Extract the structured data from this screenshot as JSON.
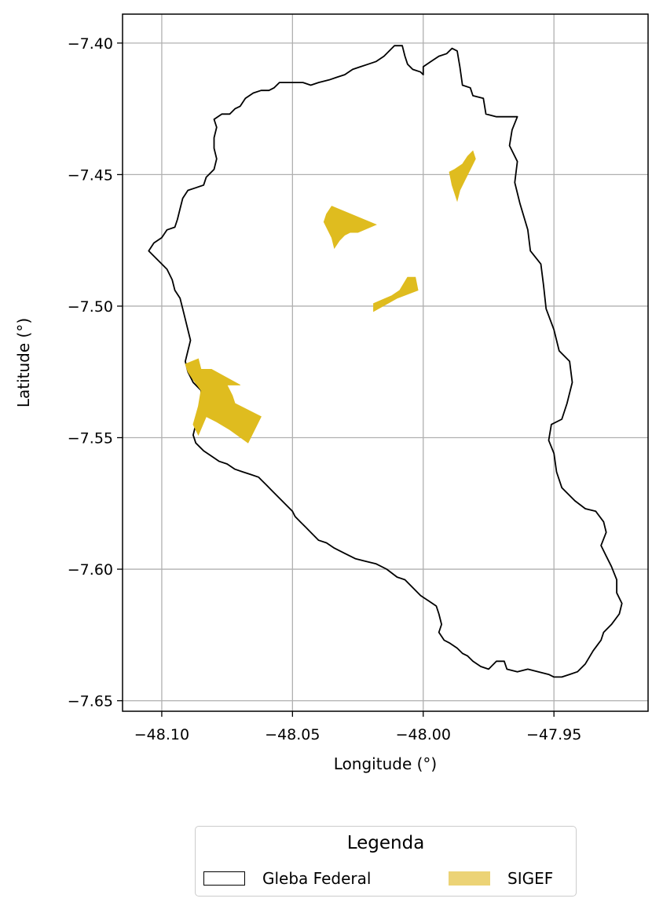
{
  "chart_data": {
    "type": "map",
    "xlabel": "Longitude (°)",
    "ylabel": "Latitude (°)",
    "xlim": [
      -48.115,
      -47.914
    ],
    "ylim": [
      -7.654,
      -7.389
    ],
    "x_ticks": [
      -48.1,
      -48.05,
      -48.0,
      -47.95
    ],
    "x_tick_labels": [
      "−48.10",
      "−48.05",
      "−48.00",
      "−47.95"
    ],
    "y_ticks": [
      -7.4,
      -7.45,
      -7.5,
      -7.55,
      -7.6,
      -7.65
    ],
    "y_tick_labels": [
      "−7.40",
      "−7.45",
      "−7.50",
      "−7.55",
      "−7.60",
      "−7.65"
    ],
    "grid": true,
    "layers": [
      {
        "name": "Gleba Federal",
        "style": "outline",
        "stroke": "#000000",
        "polygons": [
          [
            [
              -48.011,
              -7.401
            ],
            [
              -48.008,
              -7.401
            ],
            [
              -48.007,
              -7.405
            ],
            [
              -48.006,
              -7.408
            ],
            [
              -48.004,
              -7.41
            ],
            [
              -48.001,
              -7.411
            ],
            [
              -48.0,
              -7.412
            ],
            [
              -48.0,
              -7.409
            ],
            [
              -47.997,
              -7.407
            ],
            [
              -47.994,
              -7.405
            ],
            [
              -47.991,
              -7.404
            ],
            [
              -47.989,
              -7.402
            ],
            [
              -47.987,
              -7.403
            ],
            [
              -47.986,
              -7.409
            ],
            [
              -47.985,
              -7.416
            ],
            [
              -47.982,
              -7.417
            ],
            [
              -47.981,
              -7.42
            ],
            [
              -47.977,
              -7.421
            ],
            [
              -47.976,
              -7.427
            ],
            [
              -47.972,
              -7.428
            ],
            [
              -47.964,
              -7.428
            ],
            [
              -47.966,
              -7.433
            ],
            [
              -47.967,
              -7.439
            ],
            [
              -47.964,
              -7.445
            ],
            [
              -47.965,
              -7.453
            ],
            [
              -47.963,
              -7.461
            ],
            [
              -47.96,
              -7.471
            ],
            [
              -47.959,
              -7.479
            ],
            [
              -47.955,
              -7.484
            ],
            [
              -47.954,
              -7.492
            ],
            [
              -47.953,
              -7.501
            ],
            [
              -47.95,
              -7.509
            ],
            [
              -47.948,
              -7.517
            ],
            [
              -47.944,
              -7.521
            ],
            [
              -47.943,
              -7.529
            ],
            [
              -47.945,
              -7.537
            ],
            [
              -47.947,
              -7.543
            ],
            [
              -47.951,
              -7.545
            ],
            [
              -47.952,
              -7.551
            ],
            [
              -47.95,
              -7.556
            ],
            [
              -47.949,
              -7.563
            ],
            [
              -47.947,
              -7.569
            ],
            [
              -47.942,
              -7.574
            ],
            [
              -47.938,
              -7.577
            ],
            [
              -47.934,
              -7.578
            ],
            [
              -47.931,
              -7.582
            ],
            [
              -47.93,
              -7.586
            ],
            [
              -47.932,
              -7.591
            ],
            [
              -47.93,
              -7.595
            ],
            [
              -47.928,
              -7.599
            ],
            [
              -47.926,
              -7.604
            ],
            [
              -47.926,
              -7.609
            ],
            [
              -47.924,
              -7.613
            ],
            [
              -47.925,
              -7.617
            ],
            [
              -47.928,
              -7.621
            ],
            [
              -47.931,
              -7.624
            ],
            [
              -47.932,
              -7.627
            ],
            [
              -47.935,
              -7.631
            ],
            [
              -47.938,
              -7.636
            ],
            [
              -47.941,
              -7.639
            ],
            [
              -47.944,
              -7.64
            ],
            [
              -47.947,
              -7.641
            ],
            [
              -47.95,
              -7.641
            ],
            [
              -47.952,
              -7.64
            ],
            [
              -47.956,
              -7.639
            ],
            [
              -47.96,
              -7.638
            ],
            [
              -47.964,
              -7.639
            ],
            [
              -47.968,
              -7.638
            ],
            [
              -47.969,
              -7.635
            ],
            [
              -47.972,
              -7.635
            ],
            [
              -47.975,
              -7.638
            ],
            [
              -47.978,
              -7.637
            ],
            [
              -47.981,
              -7.635
            ],
            [
              -47.983,
              -7.633
            ],
            [
              -47.985,
              -7.632
            ],
            [
              -47.987,
              -7.63
            ],
            [
              -47.99,
              -7.628
            ],
            [
              -47.992,
              -7.627
            ],
            [
              -47.994,
              -7.624
            ],
            [
              -47.993,
              -7.621
            ],
            [
              -47.994,
              -7.617
            ],
            [
              -47.995,
              -7.614
            ],
            [
              -47.998,
              -7.612
            ],
            [
              -48.001,
              -7.61
            ],
            [
              -48.004,
              -7.607
            ],
            [
              -48.007,
              -7.604
            ],
            [
              -48.01,
              -7.603
            ],
            [
              -48.014,
              -7.6
            ],
            [
              -48.018,
              -7.598
            ],
            [
              -48.022,
              -7.597
            ],
            [
              -48.026,
              -7.596
            ],
            [
              -48.03,
              -7.594
            ],
            [
              -48.034,
              -7.592
            ],
            [
              -48.037,
              -7.59
            ],
            [
              -48.04,
              -7.589
            ],
            [
              -48.043,
              -7.586
            ],
            [
              -48.045,
              -7.584
            ],
            [
              -48.047,
              -7.582
            ],
            [
              -48.049,
              -7.58
            ],
            [
              -48.05,
              -7.578
            ],
            [
              -48.052,
              -7.576
            ],
            [
              -48.054,
              -7.574
            ],
            [
              -48.056,
              -7.572
            ],
            [
              -48.058,
              -7.57
            ],
            [
              -48.06,
              -7.568
            ],
            [
              -48.062,
              -7.566
            ],
            [
              -48.063,
              -7.565
            ],
            [
              -48.066,
              -7.564
            ],
            [
              -48.069,
              -7.563
            ],
            [
              -48.072,
              -7.562
            ],
            [
              -48.075,
              -7.56
            ],
            [
              -48.078,
              -7.559
            ],
            [
              -48.081,
              -7.557
            ],
            [
              -48.084,
              -7.555
            ],
            [
              -48.087,
              -7.552
            ],
            [
              -48.088,
              -7.549
            ],
            [
              -48.087,
              -7.545
            ],
            [
              -48.086,
              -7.541
            ],
            [
              -48.085,
              -7.537
            ],
            [
              -48.085,
              -7.532
            ],
            [
              -48.088,
              -7.529
            ],
            [
              -48.09,
              -7.525
            ],
            [
              -48.091,
              -7.521
            ],
            [
              -48.09,
              -7.517
            ],
            [
              -48.089,
              -7.513
            ],
            [
              -48.09,
              -7.509
            ],
            [
              -48.091,
              -7.505
            ],
            [
              -48.092,
              -7.501
            ],
            [
              -48.093,
              -7.497
            ],
            [
              -48.095,
              -7.494
            ],
            [
              -48.096,
              -7.49
            ],
            [
              -48.098,
              -7.486
            ],
            [
              -48.1,
              -7.484
            ],
            [
              -48.103,
              -7.481
            ],
            [
              -48.105,
              -7.479
            ],
            [
              -48.103,
              -7.476
            ],
            [
              -48.1,
              -7.474
            ],
            [
              -48.098,
              -7.471
            ],
            [
              -48.095,
              -7.47
            ],
            [
              -48.094,
              -7.467
            ],
            [
              -48.093,
              -7.463
            ],
            [
              -48.092,
              -7.459
            ],
            [
              -48.09,
              -7.456
            ],
            [
              -48.087,
              -7.455
            ],
            [
              -48.084,
              -7.454
            ],
            [
              -48.083,
              -7.451
            ],
            [
              -48.08,
              -7.448
            ],
            [
              -48.079,
              -7.444
            ],
            [
              -48.08,
              -7.44
            ],
            [
              -48.08,
              -7.436
            ],
            [
              -48.079,
              -7.432
            ],
            [
              -48.08,
              -7.429
            ],
            [
              -48.077,
              -7.427
            ],
            [
              -48.074,
              -7.427
            ],
            [
              -48.072,
              -7.425
            ],
            [
              -48.07,
              -7.424
            ],
            [
              -48.068,
              -7.421
            ],
            [
              -48.065,
              -7.419
            ],
            [
              -48.062,
              -7.418
            ],
            [
              -48.059,
              -7.418
            ],
            [
              -48.057,
              -7.417
            ],
            [
              -48.055,
              -7.415
            ],
            [
              -48.051,
              -7.415
            ],
            [
              -48.046,
              -7.415
            ],
            [
              -48.043,
              -7.416
            ],
            [
              -48.04,
              -7.415
            ],
            [
              -48.036,
              -7.414
            ],
            [
              -48.033,
              -7.413
            ],
            [
              -48.03,
              -7.412
            ],
            [
              -48.027,
              -7.41
            ],
            [
              -48.024,
              -7.409
            ],
            [
              -48.021,
              -7.408
            ],
            [
              -48.018,
              -7.407
            ],
            [
              -48.015,
              -7.405
            ],
            [
              -48.013,
              -7.403
            ],
            [
              -48.011,
              -7.401
            ]
          ]
        ]
      },
      {
        "name": "SIGEF",
        "style": "fill",
        "fill": "#dfbc1f",
        "polygons": [
          [
            [
              -47.988,
              -7.448
            ],
            [
              -47.985,
              -7.446
            ],
            [
              -47.983,
              -7.443
            ],
            [
              -47.981,
              -7.441
            ],
            [
              -47.98,
              -7.444
            ],
            [
              -47.982,
              -7.448
            ],
            [
              -47.984,
              -7.452
            ],
            [
              -47.986,
              -7.456
            ],
            [
              -47.987,
              -7.46
            ],
            [
              -47.989,
              -7.454
            ],
            [
              -47.99,
              -7.449
            ]
          ],
          [
            [
              -48.035,
              -7.462
            ],
            [
              -48.018,
              -7.469
            ],
            [
              -48.025,
              -7.472
            ],
            [
              -48.028,
              -7.472
            ],
            [
              -48.03,
              -7.473
            ],
            [
              -48.032,
              -7.475
            ],
            [
              -48.034,
              -7.478
            ],
            [
              -48.035,
              -7.474
            ],
            [
              -48.038,
              -7.468
            ],
            [
              -48.037,
              -7.465
            ]
          ],
          [
            [
              -48.006,
              -7.489
            ],
            [
              -48.003,
              -7.489
            ],
            [
              -48.002,
              -7.494
            ],
            [
              -48.01,
              -7.497
            ],
            [
              -48.019,
              -7.502
            ],
            [
              -48.019,
              -7.499
            ],
            [
              -48.012,
              -7.496
            ],
            [
              -48.009,
              -7.494
            ]
          ],
          [
            [
              -48.091,
              -7.522
            ],
            [
              -48.086,
              -7.52
            ],
            [
              -48.085,
              -7.524
            ],
            [
              -48.081,
              -7.524
            ],
            [
              -48.07,
              -7.53
            ],
            [
              -48.075,
              -7.53
            ],
            [
              -48.073,
              -7.534
            ],
            [
              -48.072,
              -7.537
            ],
            [
              -48.062,
              -7.542
            ],
            [
              -48.067,
              -7.552
            ],
            [
              -48.074,
              -7.547
            ],
            [
              -48.079,
              -7.544
            ],
            [
              -48.083,
              -7.542
            ],
            [
              -48.086,
              -7.549
            ],
            [
              -48.088,
              -7.545
            ],
            [
              -48.086,
              -7.538
            ],
            [
              -48.085,
              -7.532
            ],
            [
              -48.088,
              -7.528
            ],
            [
              -48.09,
              -7.525
            ]
          ]
        ]
      }
    ],
    "legend": {
      "title": "Legenda",
      "placement": "bottom-center",
      "entries": [
        {
          "label": "Gleba Federal",
          "style": "outline",
          "color": "#000000"
        },
        {
          "label": "SIGEF",
          "style": "fill",
          "color": "#ecd376"
        }
      ]
    }
  }
}
